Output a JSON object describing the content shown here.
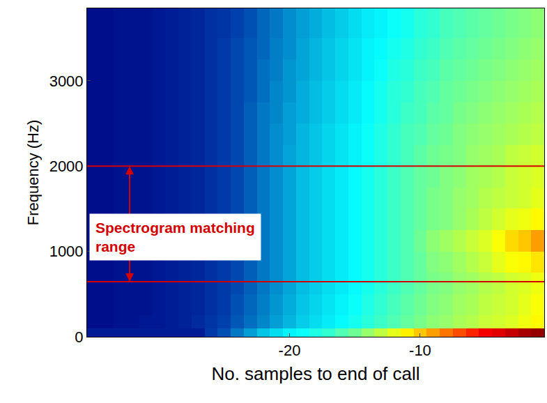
{
  "chart_data": {
    "type": "heatmap",
    "x_label": "No. samples to end of call",
    "y_label": "Frequency (Hz)",
    "xlim": [
      -35.5,
      -0.5
    ],
    "xticks": [
      -20,
      -10
    ],
    "ylim": [
      0,
      3850
    ],
    "yticks": [
      0,
      1000,
      2000,
      3000
    ],
    "grid": false,
    "x": [
      -35,
      -34,
      -33,
      -32,
      -31,
      -30,
      -29,
      -28,
      -27,
      -26,
      -25,
      -24,
      -23,
      -22,
      -21,
      -20,
      -19,
      -18,
      -17,
      -16,
      -15,
      -14,
      -13,
      -12,
      -11,
      -10,
      -9,
      -8,
      -7,
      -6,
      -5,
      -4,
      -3,
      -2,
      -1
    ],
    "y_bins": [
      0,
      100,
      250,
      500,
      750,
      1000,
      1250,
      1500,
      1750,
      2000,
      2250,
      2500,
      2750,
      3000,
      3250,
      3500,
      3850
    ],
    "color_range": [
      0,
      1
    ],
    "cells": [
      [
        0.06,
        0.06,
        0.06,
        0.06,
        0.06,
        0.06,
        0.06,
        0.06,
        0.06,
        0.12,
        0.15,
        0.2,
        0.25,
        0.3,
        0.33,
        0.36,
        0.38,
        0.4,
        0.42,
        0.45,
        0.48,
        0.52,
        0.56,
        0.6,
        0.64,
        0.68,
        0.72,
        0.76,
        0.8,
        0.84,
        0.88,
        0.9,
        0.93,
        0.96,
        0.98
      ],
      [
        0.03,
        0.03,
        0.04,
        0.04,
        0.05,
        0.05,
        0.06,
        0.07,
        0.09,
        0.11,
        0.13,
        0.16,
        0.19,
        0.22,
        0.25,
        0.28,
        0.31,
        0.33,
        0.35,
        0.37,
        0.39,
        0.41,
        0.43,
        0.45,
        0.47,
        0.49,
        0.51,
        0.52,
        0.54,
        0.55,
        0.57,
        0.58,
        0.59,
        0.61,
        0.63
      ],
      [
        0.03,
        0.03,
        0.04,
        0.04,
        0.04,
        0.05,
        0.06,
        0.07,
        0.08,
        0.1,
        0.12,
        0.15,
        0.18,
        0.21,
        0.24,
        0.27,
        0.3,
        0.32,
        0.34,
        0.36,
        0.38,
        0.4,
        0.42,
        0.44,
        0.46,
        0.48,
        0.5,
        0.51,
        0.53,
        0.54,
        0.56,
        0.57,
        0.58,
        0.6,
        0.62
      ],
      [
        0.03,
        0.03,
        0.04,
        0.04,
        0.04,
        0.05,
        0.06,
        0.07,
        0.08,
        0.1,
        0.12,
        0.14,
        0.17,
        0.2,
        0.23,
        0.26,
        0.29,
        0.31,
        0.33,
        0.35,
        0.37,
        0.39,
        0.41,
        0.43,
        0.45,
        0.47,
        0.49,
        0.5,
        0.52,
        0.53,
        0.55,
        0.56,
        0.58,
        0.59,
        0.61
      ],
      [
        0.03,
        0.03,
        0.04,
        0.04,
        0.04,
        0.05,
        0.06,
        0.07,
        0.08,
        0.1,
        0.12,
        0.14,
        0.17,
        0.2,
        0.23,
        0.26,
        0.29,
        0.31,
        0.33,
        0.35,
        0.37,
        0.39,
        0.41,
        0.43,
        0.45,
        0.47,
        0.5,
        0.51,
        0.53,
        0.55,
        0.57,
        0.6,
        0.62,
        0.63,
        0.65
      ],
      [
        0.03,
        0.03,
        0.04,
        0.04,
        0.04,
        0.05,
        0.06,
        0.07,
        0.08,
        0.1,
        0.12,
        0.14,
        0.17,
        0.2,
        0.23,
        0.26,
        0.29,
        0.31,
        0.33,
        0.35,
        0.37,
        0.39,
        0.41,
        0.43,
        0.45,
        0.48,
        0.51,
        0.53,
        0.55,
        0.57,
        0.59,
        0.62,
        0.66,
        0.68,
        0.72
      ],
      [
        0.03,
        0.03,
        0.04,
        0.04,
        0.04,
        0.05,
        0.06,
        0.07,
        0.08,
        0.1,
        0.12,
        0.14,
        0.17,
        0.2,
        0.23,
        0.26,
        0.29,
        0.31,
        0.33,
        0.35,
        0.37,
        0.39,
        0.41,
        0.43,
        0.45,
        0.47,
        0.49,
        0.5,
        0.52,
        0.54,
        0.56,
        0.58,
        0.6,
        0.61,
        0.63
      ],
      [
        0.03,
        0.03,
        0.04,
        0.04,
        0.04,
        0.05,
        0.06,
        0.07,
        0.08,
        0.1,
        0.12,
        0.14,
        0.17,
        0.2,
        0.23,
        0.26,
        0.29,
        0.31,
        0.33,
        0.35,
        0.37,
        0.39,
        0.41,
        0.43,
        0.45,
        0.47,
        0.49,
        0.5,
        0.52,
        0.53,
        0.55,
        0.56,
        0.57,
        0.58,
        0.6
      ],
      [
        0.03,
        0.03,
        0.04,
        0.04,
        0.04,
        0.05,
        0.06,
        0.07,
        0.08,
        0.1,
        0.12,
        0.14,
        0.17,
        0.2,
        0.23,
        0.26,
        0.29,
        0.31,
        0.33,
        0.35,
        0.37,
        0.39,
        0.41,
        0.43,
        0.45,
        0.47,
        0.48,
        0.5,
        0.51,
        0.53,
        0.54,
        0.55,
        0.57,
        0.58,
        0.59
      ],
      [
        0.03,
        0.03,
        0.04,
        0.04,
        0.04,
        0.05,
        0.06,
        0.07,
        0.08,
        0.1,
        0.12,
        0.14,
        0.17,
        0.2,
        0.23,
        0.26,
        0.28,
        0.3,
        0.32,
        0.34,
        0.36,
        0.38,
        0.4,
        0.42,
        0.44,
        0.46,
        0.48,
        0.49,
        0.5,
        0.52,
        0.53,
        0.54,
        0.56,
        0.57,
        0.58
      ],
      [
        0.03,
        0.03,
        0.04,
        0.04,
        0.04,
        0.05,
        0.06,
        0.07,
        0.08,
        0.1,
        0.12,
        0.14,
        0.17,
        0.2,
        0.23,
        0.25,
        0.28,
        0.3,
        0.32,
        0.34,
        0.36,
        0.38,
        0.4,
        0.42,
        0.44,
        0.45,
        0.47,
        0.48,
        0.5,
        0.51,
        0.52,
        0.53,
        0.54,
        0.55,
        0.56
      ],
      [
        0.03,
        0.03,
        0.04,
        0.04,
        0.04,
        0.05,
        0.06,
        0.07,
        0.08,
        0.1,
        0.12,
        0.14,
        0.17,
        0.2,
        0.22,
        0.25,
        0.27,
        0.29,
        0.31,
        0.33,
        0.35,
        0.37,
        0.39,
        0.41,
        0.43,
        0.44,
        0.46,
        0.47,
        0.49,
        0.5,
        0.51,
        0.52,
        0.53,
        0.54,
        0.55
      ],
      [
        0.03,
        0.03,
        0.04,
        0.04,
        0.04,
        0.05,
        0.06,
        0.07,
        0.08,
        0.1,
        0.12,
        0.14,
        0.16,
        0.19,
        0.22,
        0.24,
        0.27,
        0.29,
        0.31,
        0.33,
        0.35,
        0.37,
        0.39,
        0.41,
        0.42,
        0.44,
        0.45,
        0.47,
        0.48,
        0.49,
        0.5,
        0.51,
        0.52,
        0.53,
        0.54
      ],
      [
        0.03,
        0.03,
        0.04,
        0.04,
        0.04,
        0.05,
        0.06,
        0.07,
        0.08,
        0.1,
        0.12,
        0.14,
        0.16,
        0.19,
        0.21,
        0.24,
        0.26,
        0.28,
        0.3,
        0.32,
        0.34,
        0.36,
        0.38,
        0.4,
        0.41,
        0.43,
        0.44,
        0.46,
        0.47,
        0.48,
        0.49,
        0.5,
        0.51,
        0.52,
        0.53
      ],
      [
        0.03,
        0.03,
        0.04,
        0.04,
        0.04,
        0.05,
        0.06,
        0.07,
        0.08,
        0.1,
        0.12,
        0.14,
        0.16,
        0.18,
        0.21,
        0.23,
        0.26,
        0.28,
        0.3,
        0.32,
        0.34,
        0.36,
        0.37,
        0.39,
        0.4,
        0.42,
        0.43,
        0.45,
        0.46,
        0.47,
        0.48,
        0.49,
        0.5,
        0.51,
        0.52
      ],
      [
        0.03,
        0.03,
        0.04,
        0.04,
        0.04,
        0.05,
        0.06,
        0.07,
        0.08,
        0.1,
        0.11,
        0.13,
        0.15,
        0.18,
        0.2,
        0.23,
        0.25,
        0.27,
        0.29,
        0.31,
        0.33,
        0.35,
        0.36,
        0.38,
        0.39,
        0.41,
        0.42,
        0.44,
        0.45,
        0.46,
        0.47,
        0.48,
        0.49,
        0.5,
        0.51
      ]
    ],
    "matching_range": [
      645,
      2000
    ],
    "annotation": [
      "Spectrogram matching",
      "range"
    ],
    "color": "#d40000"
  }
}
